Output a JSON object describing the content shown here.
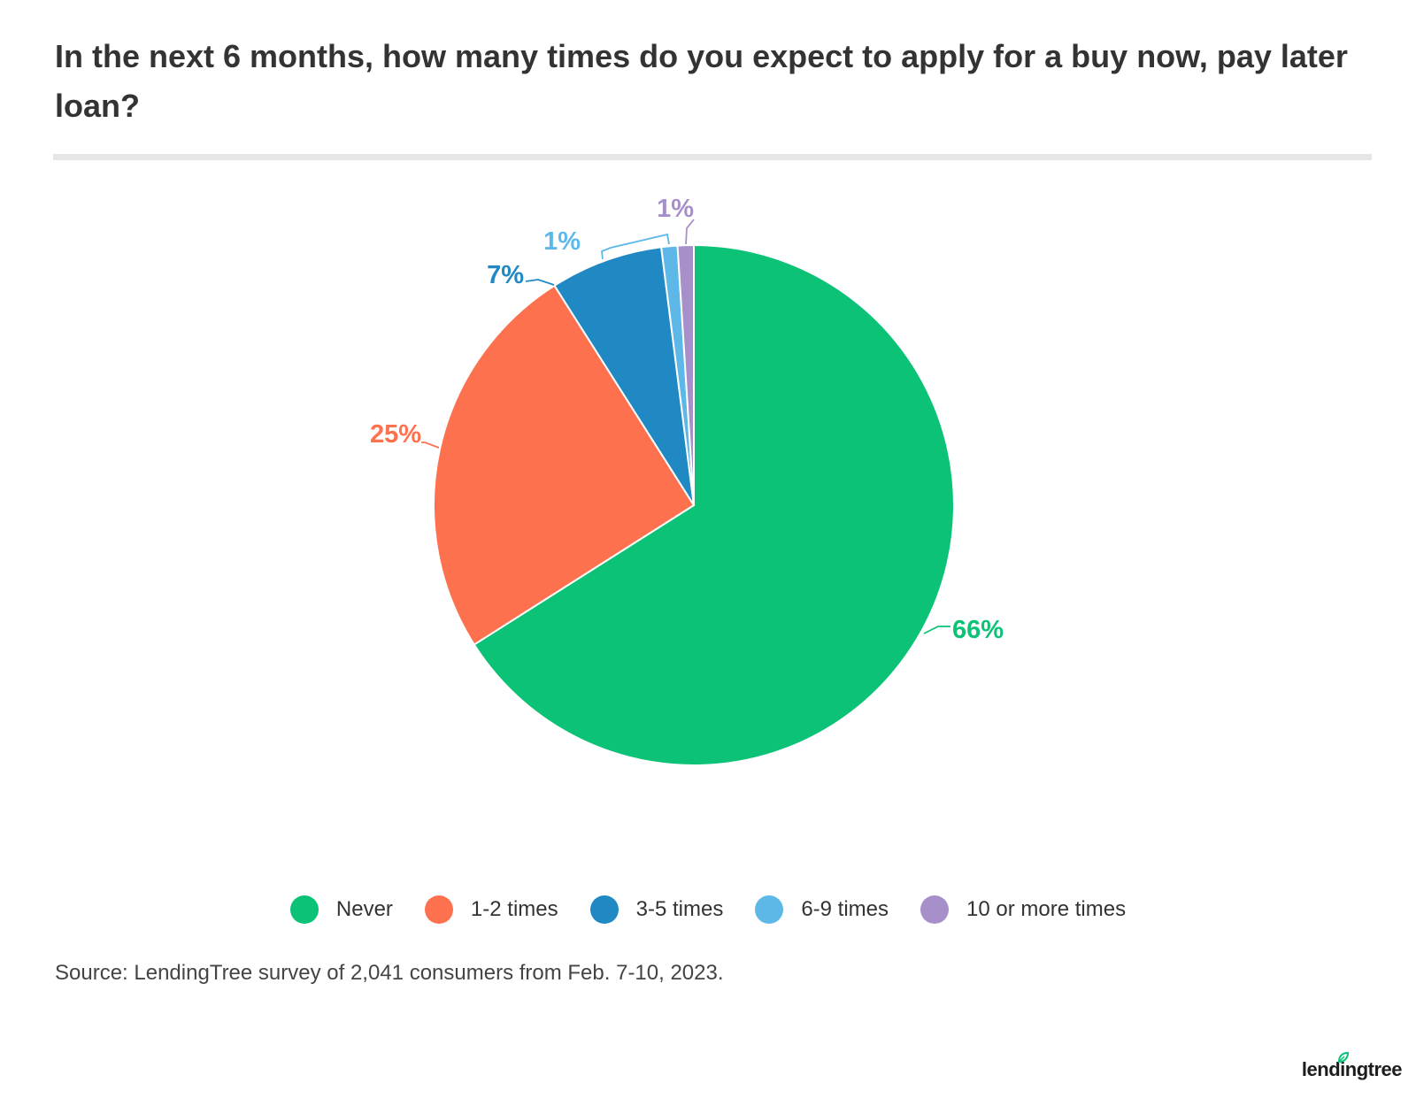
{
  "title": "In the next 6 months, how many times do you expect to apply for a buy now, pay later loan?",
  "source": "Source: LendingTree survey of 2,041 consumers from Feb. 7-10, 2023.",
  "logo": "lendingtree",
  "colors": {
    "never": "#0cc276",
    "one_two": "#fe714e",
    "three_five": "#2089c3",
    "six_nine": "#5db8e8",
    "ten_plus": "#a78fca"
  },
  "chart_data": {
    "type": "pie",
    "title": "In the next 6 months, how many times do you expect to apply for a buy now, pay later loan?",
    "categories": [
      "Never",
      "1-2 times",
      "3-5 times",
      "6-9 times",
      "10 or more times"
    ],
    "values": [
      66,
      25,
      7,
      1,
      1
    ],
    "labels": [
      "66%",
      "25%",
      "7%",
      "1%",
      "1%"
    ],
    "colors": [
      "#0cc276",
      "#fe714e",
      "#2089c3",
      "#5db8e8",
      "#a78fca"
    ],
    "legend": "bottom"
  }
}
